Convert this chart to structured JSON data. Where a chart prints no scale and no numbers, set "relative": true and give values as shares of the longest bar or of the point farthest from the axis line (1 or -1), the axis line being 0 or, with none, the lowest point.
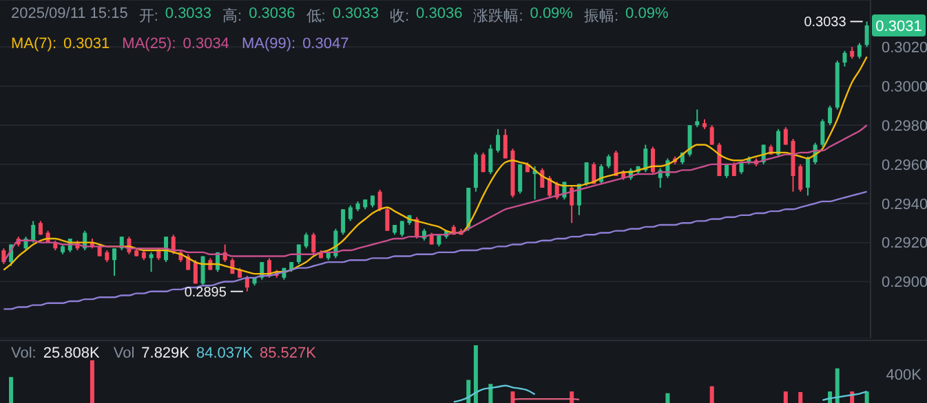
{
  "chart_data": [
    {
      "type": "candlestick",
      "categories": [
        null,
        null,
        null,
        null,
        null,
        null,
        null,
        null,
        null,
        null,
        null,
        null,
        null,
        null,
        null,
        null,
        null,
        null,
        null,
        null,
        null,
        null,
        null,
        null,
        null,
        null,
        null,
        null,
        null,
        null,
        null,
        null,
        null,
        null,
        null,
        null,
        null,
        null,
        null,
        null,
        null,
        null,
        null,
        null,
        null,
        null,
        null,
        null,
        null,
        null,
        null,
        null,
        null,
        null,
        null,
        null,
        null,
        null,
        null,
        null,
        null,
        null,
        null,
        null,
        null,
        null,
        null,
        null,
        null,
        null,
        null,
        null,
        null,
        null,
        null,
        null,
        null,
        null,
        null,
        null,
        null,
        null,
        null,
        null,
        null,
        null,
        null,
        null,
        null,
        null,
        null,
        null,
        null,
        null,
        null,
        null,
        null,
        null,
        null,
        null,
        null,
        null,
        null,
        null,
        null,
        null,
        null,
        null,
        null,
        null,
        null,
        null,
        null,
        null,
        null,
        null,
        null,
        null
      ],
      "ohlc": [
        [
          0.2916,
          0.2917,
          0.2909,
          0.291
        ],
        [
          0.291,
          0.2919,
          0.2908,
          0.2919
        ],
        [
          0.2922,
          0.2923,
          0.2918,
          0.2919
        ],
        [
          0.2917,
          0.2923,
          0.2916,
          0.2922
        ],
        [
          0.2921,
          0.2931,
          0.292,
          0.2929
        ],
        [
          0.293,
          0.2931,
          0.2924,
          0.2924
        ],
        [
          0.2925,
          0.2926,
          0.292,
          0.292
        ],
        [
          0.292,
          0.2921,
          0.2916,
          0.2917
        ],
        [
          0.2915,
          0.2919,
          0.2914,
          0.2918
        ],
        [
          0.2916,
          0.2922,
          0.2915,
          0.2922
        ],
        [
          0.292,
          0.2921,
          0.2916,
          0.2917
        ],
        [
          0.2917,
          0.2926,
          0.2916,
          0.2925
        ],
        [
          0.292,
          0.2922,
          0.2917,
          0.2918
        ],
        [
          0.2918,
          0.2919,
          0.2913,
          0.2913
        ],
        [
          0.2915,
          0.2916,
          0.291,
          0.2911
        ],
        [
          0.2911,
          0.2917,
          0.2903,
          0.2917
        ],
        [
          0.2917,
          0.2923,
          0.2916,
          0.2923
        ],
        [
          0.2922,
          0.2923,
          0.2914,
          0.2915
        ],
        [
          0.2916,
          0.2917,
          0.2913,
          0.2913
        ],
        [
          0.2915,
          0.2916,
          0.2911,
          0.2912
        ],
        [
          0.2912,
          0.2915,
          0.2905,
          0.2914
        ],
        [
          0.2916,
          0.2917,
          0.2911,
          0.2912
        ],
        [
          0.2911,
          0.2923,
          0.291,
          0.2923
        ],
        [
          0.2923,
          0.2924,
          0.2914,
          0.2915
        ],
        [
          0.2915,
          0.2916,
          0.291,
          0.2911
        ],
        [
          0.2913,
          0.2914,
          0.2906,
          0.2906
        ],
        [
          0.291,
          0.2911,
          0.2899,
          0.2899
        ],
        [
          0.2899,
          0.2913,
          0.2898,
          0.2913
        ],
        [
          0.2911,
          0.2912,
          0.2906,
          0.2906
        ],
        [
          0.2906,
          0.2915,
          0.2905,
          0.2915
        ],
        [
          0.2915,
          0.2919,
          0.291,
          0.2911
        ],
        [
          0.2911,
          0.2912,
          0.2904,
          0.2904
        ],
        [
          0.2906,
          0.2907,
          0.2902,
          0.2902
        ],
        [
          0.2902,
          0.2903,
          0.2895,
          0.2897
        ],
        [
          0.2899,
          0.2902,
          0.2898,
          0.2902
        ],
        [
          0.2902,
          0.291,
          0.2901,
          0.291
        ],
        [
          0.2911,
          0.2912,
          0.2902,
          0.2903
        ],
        [
          0.2905,
          0.2906,
          0.2902,
          0.2903
        ],
        [
          0.2902,
          0.2907,
          0.2901,
          0.2907
        ],
        [
          0.2906,
          0.291,
          0.2905,
          0.291
        ],
        [
          0.291,
          0.2919,
          0.2909,
          0.2919
        ],
        [
          0.2918,
          0.2925,
          0.2917,
          0.2924
        ],
        [
          0.2924,
          0.2925,
          0.2914,
          0.2915
        ],
        [
          0.2915,
          0.2916,
          0.2912,
          0.2912
        ],
        [
          0.2912,
          0.2915,
          0.2911,
          0.2915
        ],
        [
          0.2913,
          0.2927,
          0.2912,
          0.2926
        ],
        [
          0.2925,
          0.2937,
          0.2924,
          0.2937
        ],
        [
          0.2932,
          0.2939,
          0.2931,
          0.2938
        ],
        [
          0.2937,
          0.2941,
          0.2936,
          0.294
        ],
        [
          0.2938,
          0.2942,
          0.2937,
          0.2942
        ],
        [
          0.2939,
          0.2944,
          0.2938,
          0.2944
        ],
        [
          0.2946,
          0.2947,
          0.2936,
          0.2937
        ],
        [
          0.2937,
          0.2938,
          0.2926,
          0.2926
        ],
        [
          0.2925,
          0.2929,
          0.2924,
          0.2929
        ],
        [
          0.2924,
          0.2931,
          0.2923,
          0.2931
        ],
        [
          0.293,
          0.2934,
          0.2929,
          0.2934
        ],
        [
          0.2932,
          0.2933,
          0.2922,
          0.2923
        ],
        [
          0.2922,
          0.2927,
          0.2921,
          0.2926
        ],
        [
          0.2924,
          0.2925,
          0.2919,
          0.2919
        ],
        [
          0.2919,
          0.2924,
          0.2918,
          0.2924
        ],
        [
          0.2923,
          0.2926,
          0.2922,
          0.2926
        ],
        [
          0.2928,
          0.2929,
          0.2924,
          0.2924
        ],
        [
          0.2926,
          0.2927,
          0.2924,
          0.2924
        ],
        [
          0.2927,
          0.2948,
          0.2926,
          0.2948
        ],
        [
          0.2948,
          0.2966,
          0.2946,
          0.2965
        ],
        [
          0.2965,
          0.2966,
          0.2956,
          0.2956
        ],
        [
          0.2956,
          0.297,
          0.2955,
          0.2968
        ],
        [
          0.2967,
          0.2978,
          0.2966,
          0.2975
        ],
        [
          0.2975,
          0.2978,
          0.2963,
          0.2963
        ],
        [
          0.2967,
          0.2968,
          0.2943,
          0.2944
        ],
        [
          0.2946,
          0.296,
          0.2945,
          0.296
        ],
        [
          0.296,
          0.2961,
          0.2956,
          0.2956
        ],
        [
          0.2955,
          0.2959,
          0.2942,
          0.2957
        ],
        [
          0.2957,
          0.2958,
          0.2948,
          0.2948
        ],
        [
          0.2953,
          0.2954,
          0.2943,
          0.2944
        ],
        [
          0.295,
          0.2951,
          0.2942,
          0.2943
        ],
        [
          0.2943,
          0.2951,
          0.2942,
          0.2951
        ],
        [
          0.2948,
          0.2949,
          0.293,
          0.2939
        ],
        [
          0.2939,
          0.295,
          0.2934,
          0.295
        ],
        [
          0.295,
          0.2961,
          0.2949,
          0.2961
        ],
        [
          0.296,
          0.2961,
          0.295,
          0.295
        ],
        [
          0.2951,
          0.296,
          0.295,
          0.2959
        ],
        [
          0.2959,
          0.2965,
          0.2958,
          0.2964
        ],
        [
          0.2966,
          0.2967,
          0.2954,
          0.2954
        ],
        [
          0.2956,
          0.2957,
          0.2952,
          0.2953
        ],
        [
          0.2953,
          0.2958,
          0.2952,
          0.2957
        ],
        [
          0.2956,
          0.2959,
          0.2955,
          0.2959
        ],
        [
          0.2957,
          0.297,
          0.2956,
          0.2968
        ],
        [
          0.2968,
          0.2969,
          0.2955,
          0.2956
        ],
        [
          0.2953,
          0.2958,
          0.2948,
          0.2957
        ],
        [
          0.2954,
          0.2963,
          0.2953,
          0.2962
        ],
        [
          0.2963,
          0.2964,
          0.296,
          0.2961
        ],
        [
          0.2961,
          0.2966,
          0.296,
          0.2966
        ],
        [
          0.2965,
          0.298,
          0.2964,
          0.298
        ],
        [
          0.298,
          0.2988,
          0.2979,
          0.2982
        ],
        [
          0.2981,
          0.2983,
          0.2978,
          0.2979
        ],
        [
          0.2979,
          0.298,
          0.297,
          0.297
        ],
        [
          0.297,
          0.2971,
          0.2954,
          0.2954
        ],
        [
          0.2954,
          0.296,
          0.2953,
          0.296
        ],
        [
          0.296,
          0.2961,
          0.2954,
          0.2954
        ],
        [
          0.2956,
          0.2961,
          0.2955,
          0.2961
        ],
        [
          0.2961,
          0.2964,
          0.296,
          0.2963
        ],
        [
          0.2962,
          0.2963,
          0.2959,
          0.296
        ],
        [
          0.2961,
          0.297,
          0.296,
          0.297
        ],
        [
          0.2969,
          0.297,
          0.2965,
          0.2965
        ],
        [
          0.2965,
          0.2978,
          0.2964,
          0.2977
        ],
        [
          0.2978,
          0.2979,
          0.297,
          0.297
        ],
        [
          0.2972,
          0.2973,
          0.2946,
          0.2954
        ],
        [
          0.2959,
          0.296,
          0.2946,
          0.2947
        ],
        [
          0.2948,
          0.2964,
          0.2944,
          0.2963
        ],
        [
          0.2961,
          0.2971,
          0.296,
          0.297
        ],
        [
          0.297,
          0.2983,
          0.2969,
          0.2982
        ],
        [
          0.2981,
          0.299,
          0.298,
          0.2989
        ],
        [
          0.2989,
          0.3013,
          0.2988,
          0.3012
        ],
        [
          0.3012,
          0.3018,
          0.301,
          0.3017
        ],
        [
          0.3018,
          0.302,
          0.3014,
          0.3015
        ],
        [
          0.3015,
          0.3022,
          0.3014,
          0.3021
        ],
        [
          0.3021,
          0.3033,
          0.302,
          0.3031
        ]
      ],
      "colors": [
        "#f6465d",
        "#2ebd85",
        "#f6465d",
        "#2ebd85",
        "#2ebd85",
        "#f6465d",
        "#f6465d",
        "#f6465d",
        "#2ebd85",
        "#2ebd85",
        "#f6465d",
        "#2ebd85",
        "#f6465d",
        "#f6465d",
        "#f6465d",
        "#2ebd85",
        "#2ebd85",
        "#f6465d",
        "#f6465d",
        "#f6465d",
        "#2ebd85",
        "#f6465d",
        "#2ebd85",
        "#f6465d",
        "#f6465d",
        "#f6465d",
        "#f6465d",
        "#2ebd85",
        "#f6465d",
        "#2ebd85",
        "#f6465d",
        "#f6465d",
        "#f6465d",
        "#f6465d",
        "#2ebd85",
        "#2ebd85",
        "#f6465d",
        "#f6465d",
        "#2ebd85",
        "#2ebd85",
        "#2ebd85",
        "#2ebd85",
        "#f6465d",
        "#f6465d",
        "#2ebd85",
        "#2ebd85",
        "#2ebd85",
        "#2ebd85",
        "#2ebd85",
        "#2ebd85",
        "#2ebd85",
        "#f6465d",
        "#f6465d",
        "#2ebd85",
        "#2ebd85",
        "#2ebd85",
        "#f6465d",
        "#2ebd85",
        "#f6465d",
        "#2ebd85",
        "#2ebd85",
        "#f6465d",
        "#f6465d",
        "#2ebd85",
        "#2ebd85",
        "#f6465d",
        "#2ebd85",
        "#2ebd85",
        "#f6465d",
        "#f6465d",
        "#2ebd85",
        "#f6465d",
        "#2ebd85",
        "#f6465d",
        "#f6465d",
        "#f6465d",
        "#2ebd85",
        "#f6465d",
        "#2ebd85",
        "#2ebd85",
        "#f6465d",
        "#2ebd85",
        "#2ebd85",
        "#f6465d",
        "#f6465d",
        "#2ebd85",
        "#2ebd85",
        "#2ebd85",
        "#f6465d",
        "#2ebd85",
        "#2ebd85",
        "#f6465d",
        "#2ebd85",
        "#2ebd85",
        "#2ebd85",
        "#f6465d",
        "#f6465d",
        "#f6465d",
        "#2ebd85",
        "#f6465d",
        "#2ebd85",
        "#2ebd85",
        "#f6465d",
        "#2ebd85",
        "#f6465d",
        "#2ebd85",
        "#f6465d",
        "#f6465d",
        "#f6465d",
        "#2ebd85",
        "#2ebd85",
        "#2ebd85",
        "#2ebd85",
        "#2ebd85",
        "#2ebd85",
        "#f6465d",
        "#2ebd85",
        "#2ebd85"
      ],
      "series": [
        {
          "type": "line",
          "name": "MA(7):",
          "color": "#f0b90b",
          "values": [
            0.2906,
            0.2909,
            0.2913,
            0.2916,
            0.2919,
            0.2921,
            0.2922,
            0.2922,
            0.2921,
            0.292,
            0.292,
            0.292,
            0.292,
            0.2919,
            0.2918,
            0.2918,
            0.2918,
            0.2918,
            0.2917,
            0.2916,
            0.2916,
            0.2916,
            0.2916,
            0.2915,
            0.2914,
            0.2912,
            0.291,
            0.2909,
            0.2909,
            0.2909,
            0.2908,
            0.2907,
            0.2906,
            0.2905,
            0.2904,
            0.2904,
            0.2904,
            0.2905,
            0.2905,
            0.2906,
            0.2908,
            0.291,
            0.2913,
            0.2915,
            0.2916,
            0.2918,
            0.2921,
            0.2925,
            0.2929,
            0.2932,
            0.2935,
            0.2937,
            0.2938,
            0.2936,
            0.2934,
            0.2932,
            0.2931,
            0.293,
            0.2929,
            0.2928,
            0.2926,
            0.2925,
            0.2925,
            0.2929,
            0.2936,
            0.2944,
            0.2951,
            0.2957,
            0.2961,
            0.2962,
            0.2961,
            0.296,
            0.2957,
            0.2954,
            0.2952,
            0.295,
            0.2949,
            0.2949,
            0.2949,
            0.295,
            0.2951,
            0.2953,
            0.2954,
            0.2955,
            0.2956,
            0.2956,
            0.2957,
            0.2958,
            0.2959,
            0.2959,
            0.296,
            0.2962,
            0.2965,
            0.2968,
            0.297,
            0.297,
            0.2968,
            0.2965,
            0.2963,
            0.2962,
            0.2962,
            0.2963,
            0.2964,
            0.2965,
            0.2966,
            0.2966,
            0.2966,
            0.2965,
            0.2964,
            0.2963,
            0.2965,
            0.2968,
            0.2975,
            0.2983,
            0.2993,
            0.3002,
            0.3008,
            0.3015
          ]
        },
        {
          "type": "line",
          "name": "MA(25):",
          "color": "#c94f8e",
          "values": [
            0.291,
            0.2916,
            0.2921,
            0.2921,
            0.2921,
            0.292,
            0.292,
            0.292,
            0.2919,
            0.2919,
            0.2919,
            0.2918,
            0.2918,
            0.2918,
            0.2918,
            0.2918,
            0.2918,
            0.2917,
            0.2917,
            0.2917,
            0.2917,
            0.2917,
            0.2917,
            0.2916,
            0.2916,
            0.2915,
            0.2915,
            0.2915,
            0.2914,
            0.2914,
            0.2914,
            0.2913,
            0.2913,
            0.2913,
            0.2913,
            0.2913,
            0.2913,
            0.2913,
            0.2913,
            0.2914,
            0.2914,
            0.2914,
            0.2914,
            0.2915,
            0.2915,
            0.2915,
            0.2916,
            0.2916,
            0.2917,
            0.2918,
            0.2919,
            0.292,
            0.2921,
            0.2922,
            0.2922,
            0.2923,
            0.2923,
            0.2923,
            0.2924,
            0.2924,
            0.2924,
            0.2925,
            0.2925,
            0.2927,
            0.2929,
            0.2931,
            0.2933,
            0.2935,
            0.2937,
            0.2938,
            0.2939,
            0.294,
            0.2941,
            0.2942,
            0.2943,
            0.2944,
            0.2945,
            0.2946,
            0.2947,
            0.2948,
            0.2949,
            0.295,
            0.2951,
            0.2952,
            0.2953,
            0.2954,
            0.2955,
            0.2955,
            0.2955,
            0.2956,
            0.2956,
            0.2956,
            0.2957,
            0.2957,
            0.2958,
            0.2959,
            0.296,
            0.296,
            0.296,
            0.296,
            0.2961,
            0.2961,
            0.2961,
            0.2962,
            0.2963,
            0.2964,
            0.2965,
            0.2965,
            0.2966,
            0.2966,
            0.2967,
            0.2967,
            0.2969,
            0.2971,
            0.2973,
            0.2975,
            0.2977,
            0.298
          ]
        },
        {
          "type": "line",
          "name": "MA(99):",
          "color": "#8e7fd6",
          "values": [
            0.2886,
            0.2886,
            0.2887,
            0.2887,
            0.2888,
            0.2888,
            0.2889,
            0.2889,
            0.2889,
            0.289,
            0.289,
            0.2891,
            0.2891,
            0.2892,
            0.2892,
            0.2892,
            0.2893,
            0.2893,
            0.2894,
            0.2894,
            0.2895,
            0.2895,
            0.2895,
            0.2896,
            0.2896,
            0.2897,
            0.2897,
            0.2898,
            0.2898,
            0.2899,
            0.29,
            0.29,
            0.2901,
            0.2902,
            0.2902,
            0.2903,
            0.2903,
            0.2904,
            0.2905,
            0.2906,
            0.2907,
            0.2907,
            0.2908,
            0.2909,
            0.291,
            0.291,
            0.291,
            0.2911,
            0.2911,
            0.2911,
            0.2912,
            0.2912,
            0.2912,
            0.2913,
            0.2913,
            0.2913,
            0.2914,
            0.2914,
            0.2914,
            0.2915,
            0.2915,
            0.2915,
            0.2916,
            0.2916,
            0.2916,
            0.2917,
            0.2917,
            0.2918,
            0.2918,
            0.2919,
            0.2919,
            0.292,
            0.292,
            0.2921,
            0.2921,
            0.2922,
            0.2922,
            0.2923,
            0.2923,
            0.2924,
            0.2924,
            0.2925,
            0.2925,
            0.2926,
            0.2926,
            0.2927,
            0.2927,
            0.2928,
            0.2928,
            0.2929,
            0.2929,
            0.2929,
            0.293,
            0.293,
            0.2931,
            0.2931,
            0.2932,
            0.2932,
            0.2933,
            0.2933,
            0.2934,
            0.2934,
            0.2935,
            0.2935,
            0.2936,
            0.2936,
            0.2937,
            0.2937,
            0.2938,
            0.2939,
            0.294,
            0.2941,
            0.2941,
            0.2942,
            0.2943,
            0.2944,
            0.2945,
            0.2946
          ]
        }
      ],
      "ylim": [
        0.2871,
        0.3044
      ],
      "yticks": [
        {
          "value": 0.29,
          "label": "0.2900"
        },
        {
          "value": 0.292,
          "label": "0.2920"
        },
        {
          "value": 0.294,
          "label": "0.2940"
        },
        {
          "value": 0.296,
          "label": "0.2960"
        },
        {
          "value": 0.298,
          "label": "0.2980"
        },
        {
          "value": 0.3,
          "label": "0.3000"
        },
        {
          "value": 0.302,
          "label": "0.3020"
        }
      ],
      "grid": "y",
      "legend": "top left",
      "marker": "none",
      "line_style": "solid",
      "tick_labels": "y",
      "annotations": [
        "2025/09/11 15:15",
        "开:",
        "0.3033",
        "高:",
        "0.3036",
        "低:",
        "0.3033",
        "收:",
        "0.3036",
        "涨跌幅:",
        "0.09%",
        "振幅:",
        "0.09%",
        "0.3031",
        "0.3034",
        "0.3047",
        "0.3033",
        "0.2895",
        "0.3031"
      ]
    },
    {
      "type": "bar",
      "relative": true,
      "categories": [
        null,
        null,
        null,
        null,
        null,
        null,
        null,
        null,
        null,
        null,
        null,
        null,
        null,
        null,
        null,
        null,
        null,
        null,
        null,
        null,
        null,
        null,
        null,
        null,
        null,
        null,
        null,
        null,
        null,
        null,
        null,
        null,
        null,
        null,
        null,
        null,
        null,
        null,
        null,
        null,
        null,
        null,
        null,
        null,
        null,
        null,
        null,
        null,
        null,
        null,
        null,
        null,
        null,
        null,
        null,
        null,
        null,
        null,
        null,
        null,
        null,
        null,
        null,
        null,
        null,
        null,
        null,
        null,
        null,
        null,
        null,
        null,
        null,
        null,
        null,
        null,
        null,
        null,
        null,
        null,
        null,
        null,
        null,
        null,
        null,
        null,
        null,
        null,
        null,
        null,
        null,
        null,
        null,
        null,
        null,
        null,
        null,
        null,
        null,
        null,
        null,
        null,
        null,
        null,
        null,
        null,
        null,
        null,
        null,
        null,
        null,
        null,
        null,
        null,
        null,
        null,
        null,
        null
      ],
      "series": [
        {
          "type": "bar",
          "values": [
            null,
            0.45,
            null,
            null,
            null,
            null,
            null,
            null,
            null,
            null,
            null,
            null,
            0.74,
            null,
            null,
            null,
            null,
            null,
            null,
            null,
            null,
            null,
            null,
            null,
            null,
            null,
            null,
            null,
            null,
            null,
            null,
            null,
            null,
            null,
            null,
            null,
            null,
            null,
            null,
            null,
            null,
            null,
            null,
            null,
            null,
            null,
            null,
            null,
            null,
            null,
            null,
            null,
            null,
            null,
            null,
            null,
            null,
            null,
            null,
            null,
            null,
            null,
            null,
            0.4,
            1,
            null,
            0.33,
            null,
            null,
            0.2,
            null,
            null,
            null,
            null,
            null,
            null,
            null,
            0.2,
            null,
            null,
            null,
            null,
            null,
            null,
            null,
            null,
            null,
            null,
            null,
            null,
            0.17,
            null,
            null,
            null,
            null,
            null,
            0.29,
            null,
            null,
            null,
            null,
            null,
            null,
            null,
            null,
            null,
            0.2,
            null,
            0.19,
            null,
            null,
            null,
            0.2,
            0.6,
            null,
            0.2,
            null,
            0.2
          ],
          "colors": [
            null,
            "#2ebd85",
            null,
            null,
            null,
            null,
            null,
            null,
            null,
            null,
            null,
            null,
            "#f6465d",
            null,
            null,
            null,
            null,
            null,
            null,
            null,
            null,
            null,
            null,
            null,
            null,
            null,
            null,
            null,
            null,
            null,
            null,
            null,
            null,
            null,
            null,
            null,
            null,
            null,
            null,
            null,
            null,
            null,
            null,
            null,
            null,
            null,
            null,
            null,
            null,
            null,
            null,
            null,
            null,
            null,
            null,
            null,
            null,
            null,
            null,
            null,
            null,
            null,
            null,
            "#2ebd85",
            "#2ebd85",
            null,
            "#2ebd85",
            null,
            null,
            "#f6465d",
            null,
            null,
            null,
            null,
            null,
            null,
            null,
            "#f6465d",
            null,
            null,
            null,
            null,
            null,
            null,
            null,
            null,
            null,
            null,
            null,
            null,
            "#2ebd85",
            null,
            null,
            null,
            null,
            null,
            "#f6465d",
            null,
            null,
            null,
            null,
            null,
            null,
            null,
            null,
            null,
            "#f6465d",
            null,
            "#f6465d",
            null,
            null,
            null,
            "#2ebd85",
            "#2ebd85",
            null,
            "#f6465d",
            null,
            "#2ebd85"
          ]
        },
        {
          "type": "line",
          "color": "#5fc6d6",
          "values": [
            null,
            null,
            null,
            null,
            null,
            null,
            null,
            null,
            null,
            null,
            null,
            null,
            null,
            null,
            null,
            null,
            null,
            null,
            null,
            null,
            null,
            null,
            null,
            null,
            null,
            null,
            null,
            null,
            null,
            null,
            null,
            null,
            null,
            null,
            null,
            null,
            null,
            null,
            null,
            null,
            null,
            null,
            null,
            null,
            null,
            null,
            null,
            null,
            null,
            null,
            null,
            null,
            null,
            null,
            null,
            null,
            null,
            null,
            null,
            null,
            null,
            0.02,
            0.05,
            0.1,
            0.18,
            0.24,
            0.26,
            0.28,
            0.3,
            0.27,
            0.25,
            0.22,
            0.15,
            null,
            null,
            null,
            null,
            null,
            null,
            null,
            null,
            null,
            null,
            null,
            null,
            null,
            null,
            null,
            null,
            null,
            null,
            null,
            null,
            null,
            null,
            null,
            null,
            null,
            null,
            null,
            null,
            null,
            null,
            null,
            null,
            null,
            null,
            null,
            null,
            null,
            null,
            0.05,
            0.08,
            0.1,
            0.12,
            0.14,
            0.16,
            0.2
          ]
        },
        {
          "type": "line",
          "color": "#e0607e",
          "values": [
            null,
            null,
            null,
            null,
            null,
            null,
            null,
            null,
            null,
            null,
            null,
            null,
            null,
            null,
            null,
            null,
            null,
            null,
            null,
            null,
            null,
            null,
            null,
            null,
            null,
            null,
            null,
            null,
            null,
            null,
            null,
            null,
            null,
            null,
            null,
            null,
            null,
            null,
            null,
            null,
            null,
            null,
            null,
            null,
            null,
            null,
            null,
            null,
            null,
            null,
            null,
            null,
            null,
            null,
            null,
            null,
            null,
            null,
            null,
            null,
            null,
            null,
            null,
            null,
            null,
            null,
            null,
            null,
            null,
            0.06,
            0.07,
            0.07,
            0.07,
            0.07,
            0.07,
            0.07,
            0.07,
            0.07,
            0.06,
            null,
            null,
            null,
            null,
            null,
            null,
            null,
            null,
            null,
            null,
            null,
            null,
            null,
            null,
            null,
            null,
            null,
            null,
            null,
            null,
            null,
            null,
            null,
            null,
            null,
            null,
            null,
            null,
            null,
            null,
            null,
            null,
            null,
            null,
            null,
            null,
            null,
            null,
            null
          ]
        }
      ],
      "marker": "none",
      "annotations": [
        "Vol:",
        "25.808K",
        "Vol",
        "7.829K",
        "84.037K",
        "85.527K",
        "400K"
      ]
    }
  ]
}
